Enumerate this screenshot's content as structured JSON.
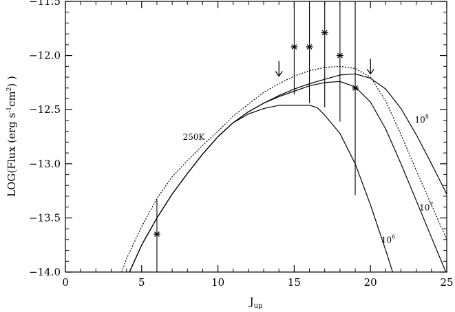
{
  "chart_data": {
    "type": "line",
    "title": "",
    "xlabel": "J",
    "xlabel_subscript": "up",
    "ylabel": "LOG(Flux (erg s",
    "ylabel_sup1": "-1",
    "ylabel_mid": "cm",
    "ylabel_sup2": "2",
    "ylabel_end": ") )",
    "xlim": [
      0,
      25
    ],
    "ylim": [
      -14.0,
      -11.5
    ],
    "xticks": [
      0,
      5,
      10,
      15,
      20,
      25
    ],
    "xtick_labels": [
      "0",
      "5",
      "10",
      "15",
      "20",
      "25"
    ],
    "yticks": [
      -14.0,
      -13.5,
      -13.0,
      -12.5,
      -12.0,
      -11.5
    ],
    "ytick_labels": [
      "−14.0",
      "−13.5",
      "−13.0",
      "−12.5",
      "−12.0",
      "−11.5"
    ],
    "grid": false,
    "series": [
      {
        "name": "250K",
        "style": "dotted",
        "label_pos": [
          7.7,
          -12.78
        ],
        "x": [
          3.7,
          4.0,
          5.0,
          6.0,
          7.0,
          8.0,
          9.0,
          10.0,
          11.0,
          12.0,
          13.0,
          14.0,
          15.0,
          16.0,
          17.0,
          18.0,
          19.0,
          20.0,
          21.0,
          22.0,
          23.0,
          24.0,
          25.0
        ],
        "y": [
          -14.0,
          -13.88,
          -13.58,
          -13.32,
          -13.12,
          -12.97,
          -12.83,
          -12.7,
          -12.56,
          -12.45,
          -12.34,
          -12.26,
          -12.19,
          -12.14,
          -12.11,
          -12.1,
          -12.12,
          -12.2,
          -12.42,
          -12.73,
          -13.06,
          -13.38,
          -13.7
        ]
      },
      {
        "name": "10",
        "superscript": "8",
        "style": "solid",
        "label_pos": [
          22.9,
          -12.62
        ],
        "x": [
          4.2,
          5.0,
          6.0,
          7.0,
          8.0,
          9.0,
          10.0,
          11.0,
          12.0,
          13.0,
          14.0,
          15.0,
          16.0,
          17.0,
          18.0,
          19.0,
          20.0,
          21.0,
          22.0,
          23.0,
          24.0,
          25.0
        ],
        "y": [
          -14.0,
          -13.75,
          -13.5,
          -13.28,
          -13.09,
          -12.91,
          -12.75,
          -12.62,
          -12.52,
          -12.44,
          -12.37,
          -12.31,
          -12.26,
          -12.22,
          -12.18,
          -12.17,
          -12.21,
          -12.31,
          -12.49,
          -12.73,
          -13.0,
          -13.28
        ]
      },
      {
        "name": "10",
        "superscript": "7",
        "style": "solid",
        "label_pos": [
          23.2,
          -13.43
        ],
        "x": [
          4.2,
          5.0,
          6.0,
          7.0,
          8.0,
          9.0,
          10.0,
          11.0,
          12.0,
          13.0,
          14.0,
          15.0,
          16.0,
          17.0,
          18.0,
          19.0,
          20.0,
          21.0,
          22.0,
          23.0,
          24.0,
          25.0
        ],
        "y": [
          -14.0,
          -13.75,
          -13.5,
          -13.28,
          -13.09,
          -12.91,
          -12.75,
          -12.62,
          -12.52,
          -12.44,
          -12.38,
          -12.33,
          -12.28,
          -12.25,
          -12.24,
          -12.29,
          -12.43,
          -12.68,
          -13.0,
          -13.34,
          -13.68,
          -14.02
        ]
      },
      {
        "name": "10",
        "superscript": "6",
        "style": "solid",
        "label_pos": [
          20.7,
          -13.73
        ],
        "x": [
          4.2,
          5.0,
          6.0,
          7.0,
          8.0,
          9.0,
          10.0,
          11.0,
          12.0,
          13.0,
          14.0,
          15.0,
          16.0,
          16.5,
          17.0,
          18.0,
          19.0,
          20.0,
          21.0,
          21.5
        ],
        "y": [
          -14.0,
          -13.75,
          -13.5,
          -13.28,
          -13.09,
          -12.91,
          -12.75,
          -12.62,
          -12.54,
          -12.49,
          -12.46,
          -12.46,
          -12.46,
          -12.48,
          -12.55,
          -12.72,
          -13.0,
          -13.38,
          -13.8,
          -14.02
        ]
      }
    ],
    "observations": [
      {
        "x": 6,
        "y": -13.65,
        "err_low": -14.0,
        "err_high": -13.33
      },
      {
        "x": 15,
        "y": -11.92,
        "err_low": -12.36,
        "err_high": -11.5
      },
      {
        "x": 16,
        "y": -11.92,
        "err_low": -12.44,
        "err_high": -11.5
      },
      {
        "x": 17,
        "y": -11.79,
        "err_low": -12.48,
        "err_high": -11.5
      },
      {
        "x": 18,
        "y": -12.0,
        "err_low": -12.61,
        "err_high": -11.5
      },
      {
        "x": 19,
        "y": -12.3,
        "err_low": -13.29,
        "err_high": -11.5
      }
    ],
    "upper_limits": [
      {
        "x": 14,
        "y": -12.05
      },
      {
        "x": 20,
        "y": -12.03
      }
    ]
  }
}
